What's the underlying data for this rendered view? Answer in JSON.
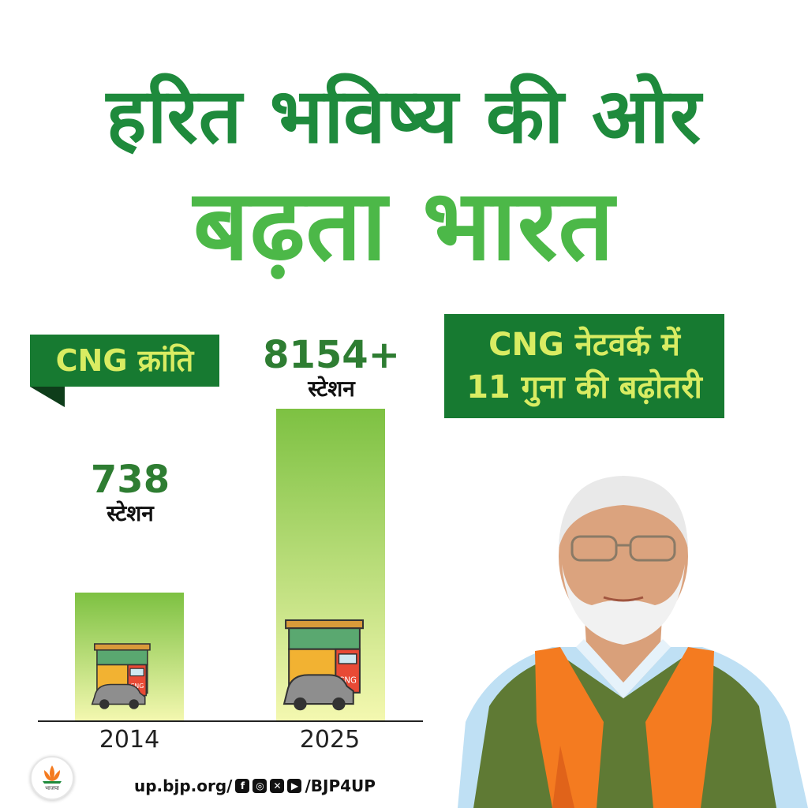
{
  "headline": {
    "line1": "हरित भविष्य की ओर",
    "line2": "बढ़ता भारत"
  },
  "ribbon_left": "CNG क्रांति",
  "ribbon_right": {
    "line1": "CNG नेटवर्क में",
    "line2": "11 गुना की बढ़ोतरी"
  },
  "colors": {
    "dark_green": "#1e8a3c",
    "light_green": "#4cb848",
    "ribbon_bg": "#177a31",
    "ribbon_text": "#d9ec62",
    "bar_top": "#7dc142",
    "bar_bottom": "#f4f8b0",
    "saffron": "#f47b20"
  },
  "chart_data": {
    "type": "bar",
    "categories": [
      "2014",
      "2025"
    ],
    "values": [
      738,
      8154
    ],
    "value_labels": [
      "738",
      "8154+"
    ],
    "unit_label": "स्टेशन",
    "title": "",
    "xlabel": "",
    "ylabel": "",
    "grid": false
  },
  "station_icon_text": "CNG",
  "footer": {
    "handle_prefix": "up.bjp.org/",
    "handle_suffix": "/BJP4UP",
    "social_icons": [
      "facebook-icon",
      "instagram-icon",
      "x-icon",
      "youtube-icon"
    ]
  },
  "logo_text": "भाजपा"
}
